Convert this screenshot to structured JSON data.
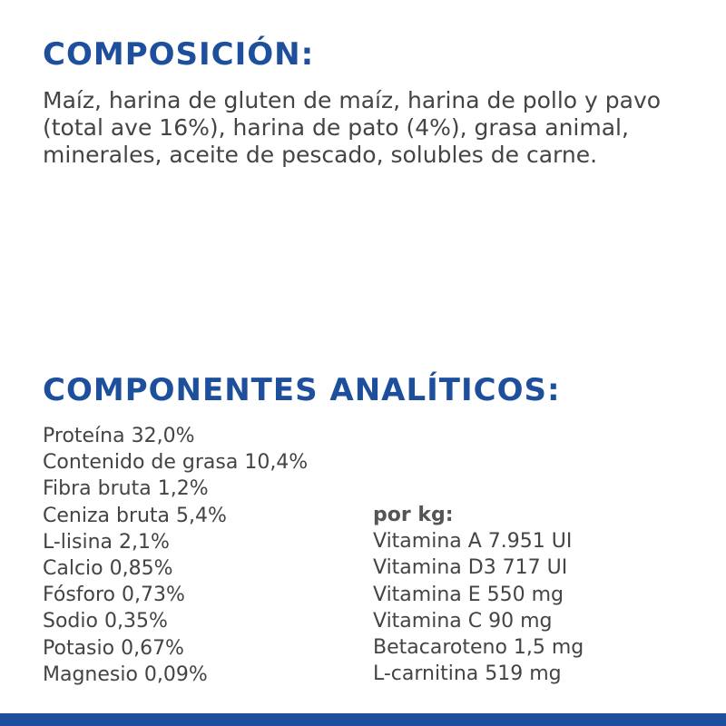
{
  "composition": {
    "title": "COMPOSICIÓN:",
    "text": "Maíz, harina de gluten de maíz, harina de pollo y pavo (total ave 16%), harina de pato (4%), grasa animal, minerales, aceite de pescado, solubles de carne."
  },
  "analytical": {
    "title": "COMPONENTES ANALÍTICOS:",
    "items": [
      "Proteína 32,0%",
      "Contenido de grasa 10,4%",
      "Fibra bruta 1,2%",
      "Ceniza bruta 5,4%",
      "L-lisina 2,1%",
      "Calcio 0,85%",
      "Fósforo 0,73%",
      "Sodio 0,35%",
      "Potasio 0,67%",
      "Magnesio 0,09%"
    ],
    "per_kg_title": "por kg:",
    "per_kg_items": [
      "Vitamina A 7.951 UI",
      "Vitamina D3 717 UI",
      "Vitamina E 550 mg",
      "Vitamina C 90 mg",
      "Betacaroteno 1,5 mg",
      "L-carnitina 519 mg"
    ]
  }
}
